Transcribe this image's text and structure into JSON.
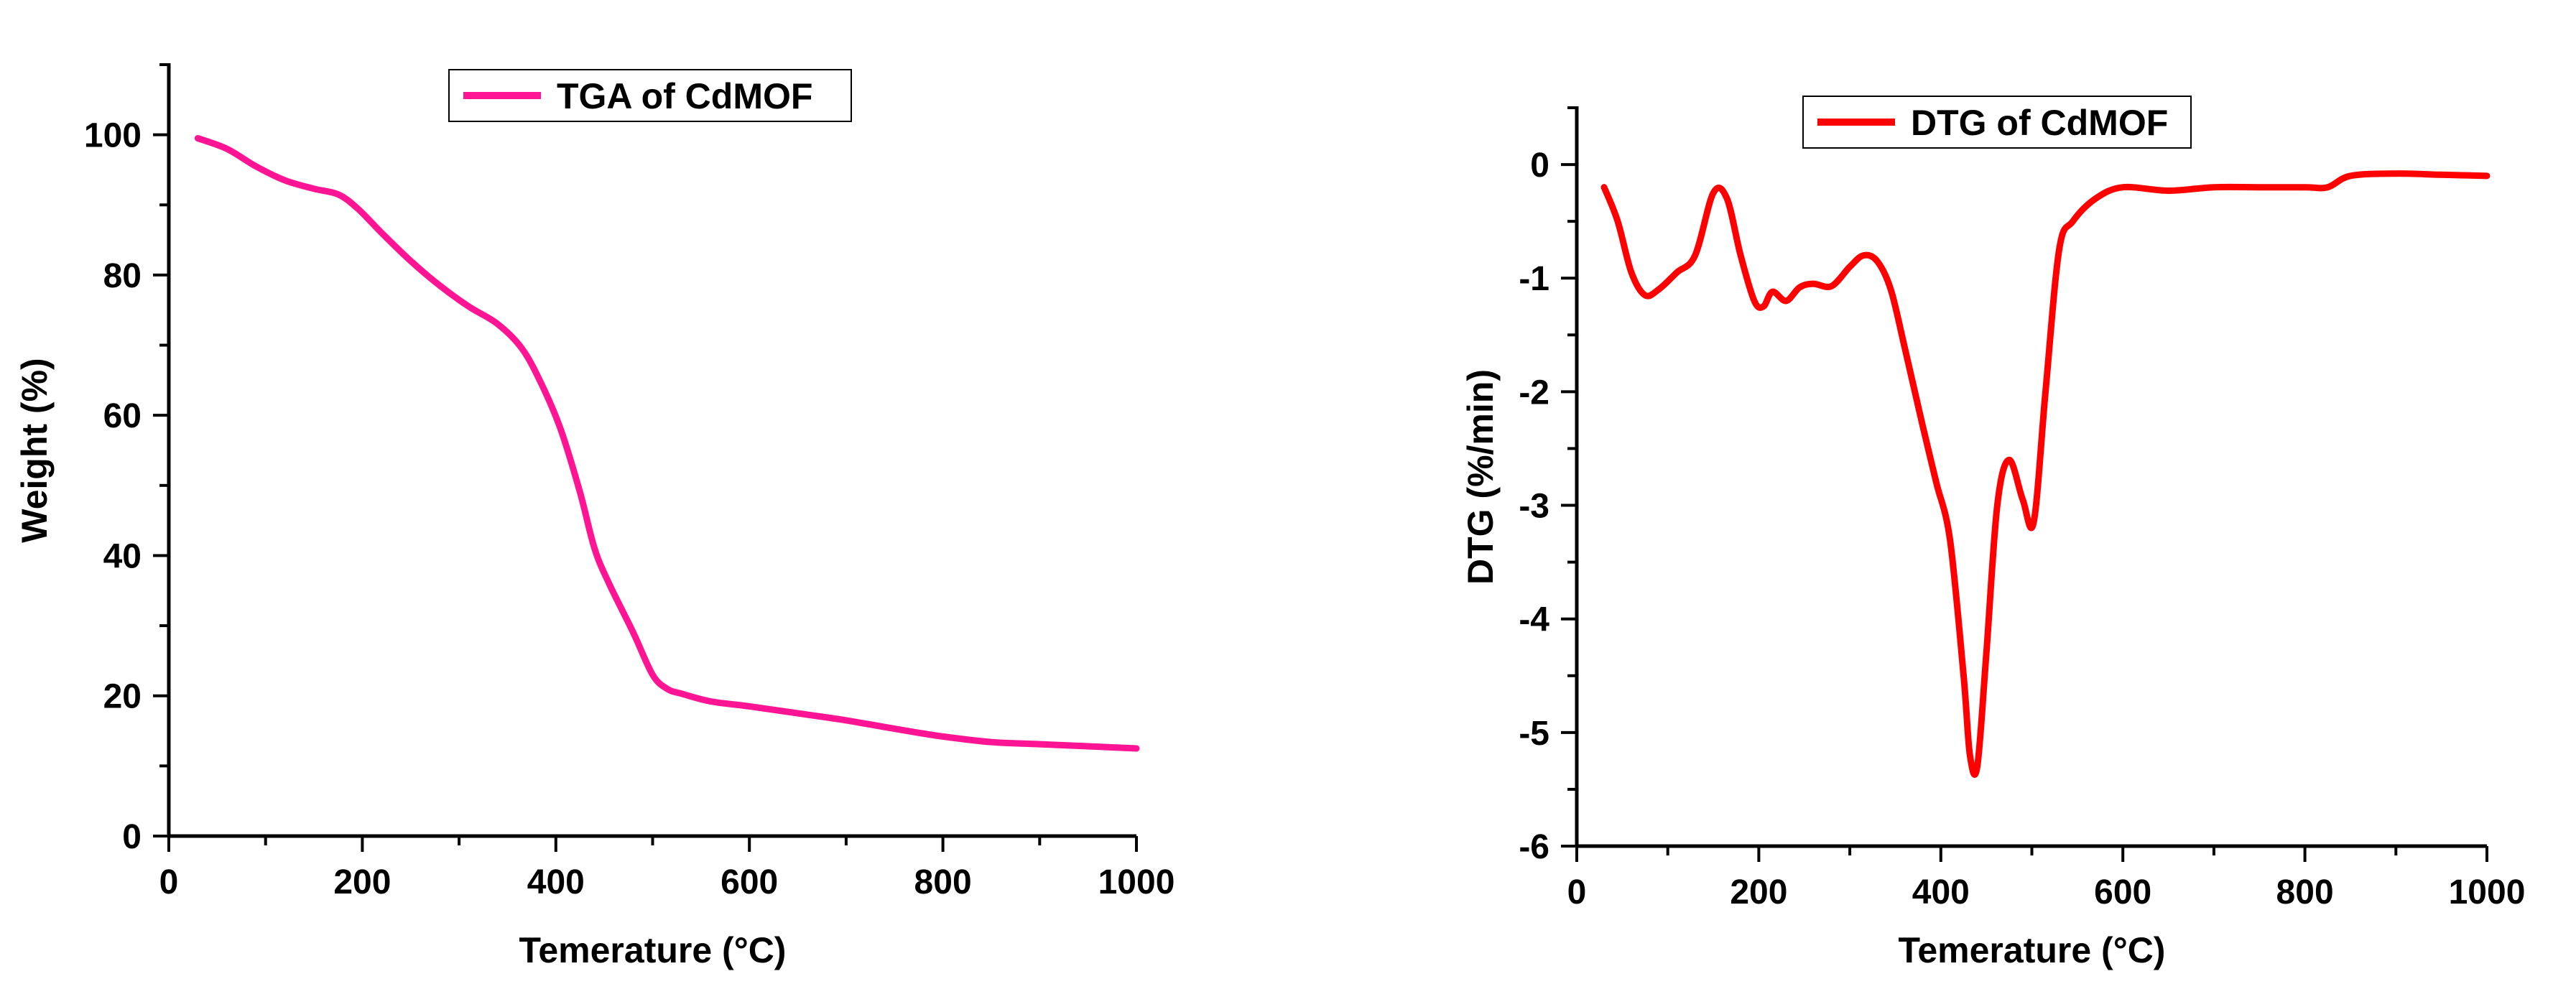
{
  "chart_data": [
    {
      "type": "line",
      "title": "",
      "xlabel": "Temerature (°C)",
      "ylabel": "Weight (%)",
      "xlim": [
        0,
        1000
      ],
      "ylim": [
        0,
        110
      ],
      "xticks": [
        "0",
        "200",
        "400",
        "600",
        "800",
        "1000"
      ],
      "yticks": [
        "0",
        "20",
        "40",
        "60",
        "80",
        "100"
      ],
      "legend": {
        "label": "TGA of CdMOF",
        "color": "#ff1493",
        "position": "top-center"
      },
      "series": [
        {
          "name": "TGA of CdMOF",
          "color": "#ff1493",
          "x": [
            30,
            60,
            90,
            120,
            150,
            175,
            195,
            220,
            250,
            280,
            310,
            340,
            365,
            385,
            405,
            425,
            440,
            455,
            480,
            500,
            515,
            530,
            560,
            600,
            650,
            700,
            750,
            800,
            850,
            900,
            950,
            1000
          ],
          "y": [
            99.5,
            98,
            95.5,
            93.5,
            92.3,
            91.5,
            89.5,
            86,
            82,
            78.5,
            75.5,
            73,
            69.5,
            64.5,
            58,
            49,
            41,
            36,
            29,
            23,
            21,
            20.3,
            19.2,
            18.5,
            17.5,
            16.5,
            15.3,
            14.2,
            13.4,
            13.1,
            12.8,
            12.5
          ]
        }
      ]
    },
    {
      "type": "line",
      "title": "",
      "xlabel": "Temerature (°C)",
      "ylabel": "DTG (%/min)",
      "xlim": [
        0,
        1000
      ],
      "ylim": [
        -6,
        0.5
      ],
      "xticks": [
        "0",
        "200",
        "400",
        "600",
        "800",
        "1000"
      ],
      "yticks": [
        "0",
        "-1",
        "-2",
        "-3",
        "-4",
        "-5",
        "-6"
      ],
      "legend": {
        "label": "DTG of CdMOF",
        "color": "#ff0000",
        "position": "top-center"
      },
      "series": [
        {
          "name": "DTG of CdMOF",
          "color": "#ff0000",
          "x": [
            30,
            45,
            60,
            75,
            90,
            110,
            130,
            150,
            165,
            180,
            195,
            205,
            215,
            230,
            245,
            260,
            280,
            300,
            315,
            330,
            345,
            360,
            380,
            395,
            410,
            425,
            432,
            440,
            450,
            462,
            475,
            490,
            502,
            515,
            530,
            545,
            570,
            600,
            650,
            700,
            750,
            800,
            825,
            850,
            900,
            950,
            1000
          ],
          "y": [
            -0.2,
            -0.5,
            -0.95,
            -1.15,
            -1.1,
            -0.95,
            -0.8,
            -0.25,
            -0.3,
            -0.8,
            -1.2,
            -1.25,
            -1.12,
            -1.2,
            -1.08,
            -1.05,
            -1.07,
            -0.9,
            -0.8,
            -0.85,
            -1.1,
            -1.6,
            -2.3,
            -2.8,
            -3.3,
            -4.5,
            -5.2,
            -5.3,
            -4.3,
            -3.0,
            -2.6,
            -2.95,
            -3.15,
            -2.0,
            -0.75,
            -0.5,
            -0.3,
            -0.2,
            -0.23,
            -0.2,
            -0.2,
            -0.2,
            -0.2,
            -0.1,
            -0.08,
            -0.09,
            -0.1
          ]
        }
      ]
    }
  ]
}
